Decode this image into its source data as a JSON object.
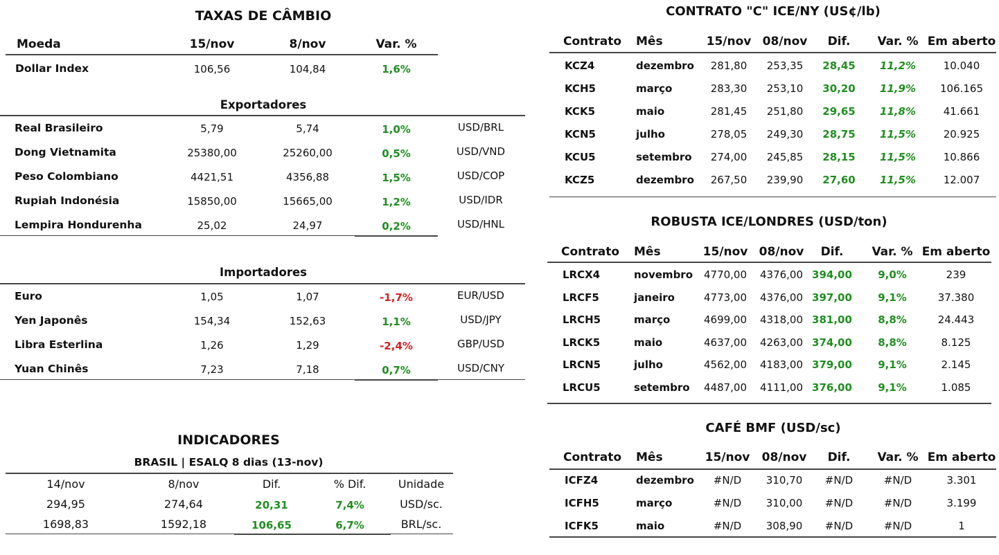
{
  "colors": {
    "positive": "#1f8f1f",
    "negative": "#d81f1f",
    "rule": "#444444"
  },
  "cambio": {
    "title": "TAXAS DE CÂMBIO",
    "headers": {
      "moeda": "Moeda",
      "d1": "15/nov",
      "d2": "8/nov",
      "var": "Var. %"
    },
    "dollar_index": {
      "name": "Dollar Index",
      "d1": "106,56",
      "d2": "104,84",
      "var": "1,6%"
    },
    "exportadores": {
      "title": "Exportadores",
      "rows": [
        {
          "name": "Real Brasileiro",
          "d1": "5,79",
          "d2": "5,74",
          "var": "1,0%",
          "pair": "USD/BRL"
        },
        {
          "name": "Dong Vietnamita",
          "d1": "25380,00",
          "d2": "25260,00",
          "var": "0,5%",
          "pair": "USD/VND"
        },
        {
          "name": "Peso Colombiano",
          "d1": "4421,51",
          "d2": "4356,88",
          "var": "1,5%",
          "pair": "USD/COP"
        },
        {
          "name": "Rupiah Indonésia",
          "d1": "15850,00",
          "d2": "15665,00",
          "var": "1,2%",
          "pair": "USD/IDR"
        },
        {
          "name": "Lempira Hondurenha",
          "d1": "25,02",
          "d2": "24,97",
          "var": "0,2%",
          "pair": "USD/HNL"
        }
      ]
    },
    "importadores": {
      "title": "Importadores",
      "rows": [
        {
          "name": "Euro",
          "d1": "1,05",
          "d2": "1,07",
          "var": "-1,7%",
          "pair": "EUR/USD"
        },
        {
          "name": "Yen Japonês",
          "d1": "154,34",
          "d2": "152,63",
          "var": "1,1%",
          "pair": "USD/JPY"
        },
        {
          "name": "Libra Esterlina",
          "d1": "1,26",
          "d2": "1,29",
          "var": "-2,4%",
          "pair": "GBP/USD"
        },
        {
          "name": "Yuan Chinês",
          "d1": "7,23",
          "d2": "7,18",
          "var": "0,7%",
          "pair": "USD/CNY"
        }
      ]
    }
  },
  "indicadores": {
    "title": "INDICADORES",
    "subtitle": "BRASIL | ESALQ 8 dias (13-nov)",
    "headers": {
      "d1": "14/nov",
      "d2": "8/nov",
      "dif": "Dif.",
      "pct": "% Dif.",
      "unit": "Unidade"
    },
    "rows": [
      {
        "d1": "294,95",
        "d2": "274,64",
        "dif": "20,31",
        "pct": "7,4%",
        "unit": "USD/sc."
      },
      {
        "d1": "1698,83",
        "d2": "1592,18",
        "dif": "106,65",
        "pct": "6,7%",
        "unit": "BRL/sc."
      }
    ]
  },
  "arabica": {
    "title": "CONTRATO \"C\" ICE/NY (US¢/lb)",
    "headers": {
      "contrato": "Contrato",
      "mes": "Mês",
      "d1": "15/nov",
      "d2": "08/nov",
      "dif": "Dif.",
      "var": "Var. %",
      "oi": "Em aberto"
    },
    "rows": [
      {
        "c": "KCZ4",
        "m": "dezembro",
        "d1": "281,80",
        "d2": "253,35",
        "dif": "28,45",
        "var": "11,2%",
        "oi": "10.040"
      },
      {
        "c": "KCH5",
        "m": "março",
        "d1": "283,30",
        "d2": "253,10",
        "dif": "30,20",
        "var": "11,9%",
        "oi": "106.165"
      },
      {
        "c": "KCK5",
        "m": "maio",
        "d1": "281,45",
        "d2": "251,80",
        "dif": "29,65",
        "var": "11,8%",
        "oi": "41.661"
      },
      {
        "c": "KCN5",
        "m": "julho",
        "d1": "278,05",
        "d2": "249,30",
        "dif": "28,75",
        "var": "11,5%",
        "oi": "20.925"
      },
      {
        "c": "KCU5",
        "m": "setembro",
        "d1": "274,00",
        "d2": "245,85",
        "dif": "28,15",
        "var": "11,5%",
        "oi": "10.866"
      },
      {
        "c": "KCZ5",
        "m": "dezembro",
        "d1": "267,50",
        "d2": "239,90",
        "dif": "27,60",
        "var": "11,5%",
        "oi": "12.007"
      }
    ]
  },
  "robusta": {
    "title": "ROBUSTA ICE/LONDRES (USD/ton)",
    "headers": {
      "contrato": "Contrato",
      "mes": "Mês",
      "d1": "15/nov",
      "d2": "08/nov",
      "dif": "Dif.",
      "var": "Var. %",
      "oi": "Em aberto"
    },
    "rows": [
      {
        "c": "LRCX4",
        "m": "novembro",
        "d1": "4770,00",
        "d2": "4376,00",
        "dif": "394,00",
        "var": "9,0%",
        "oi": "239"
      },
      {
        "c": "LRCF5",
        "m": "janeiro",
        "d1": "4773,00",
        "d2": "4376,00",
        "dif": "397,00",
        "var": "9,1%",
        "oi": "37.380"
      },
      {
        "c": "LRCH5",
        "m": "março",
        "d1": "4699,00",
        "d2": "4318,00",
        "dif": "381,00",
        "var": "8,8%",
        "oi": "24.443"
      },
      {
        "c": "LRCK5",
        "m": "maio",
        "d1": "4637,00",
        "d2": "4263,00",
        "dif": "374,00",
        "var": "8,8%",
        "oi": "8.125"
      },
      {
        "c": "LRCN5",
        "m": "julho",
        "d1": "4562,00",
        "d2": "4183,00",
        "dif": "379,00",
        "var": "9,1%",
        "oi": "2.145"
      },
      {
        "c": "LRCU5",
        "m": "setembro",
        "d1": "4487,00",
        "d2": "4111,00",
        "dif": "376,00",
        "var": "9,1%",
        "oi": "1.085"
      }
    ]
  },
  "bmf": {
    "title": "CAFÉ BMF (USD/sc)",
    "headers": {
      "contrato": "Contrato",
      "mes": "Mês",
      "d1": "15/nov",
      "d2": "08/nov",
      "dif": "Dif.",
      "var": "Var. %",
      "oi": "Em aberto"
    },
    "rows": [
      {
        "c": "ICFZ4",
        "m": "dezembro",
        "d1": "#N/D",
        "d2": "310,70",
        "dif": "#N/D",
        "var": "#N/D",
        "oi": "3.301"
      },
      {
        "c": "ICFH5",
        "m": "março",
        "d1": "#N/D",
        "d2": "310,00",
        "dif": "#N/D",
        "var": "#N/D",
        "oi": "3.199"
      },
      {
        "c": "ICFK5",
        "m": "maio",
        "d1": "#N/D",
        "d2": "308,90",
        "dif": "#N/D",
        "var": "#N/D",
        "oi": "1"
      }
    ]
  }
}
